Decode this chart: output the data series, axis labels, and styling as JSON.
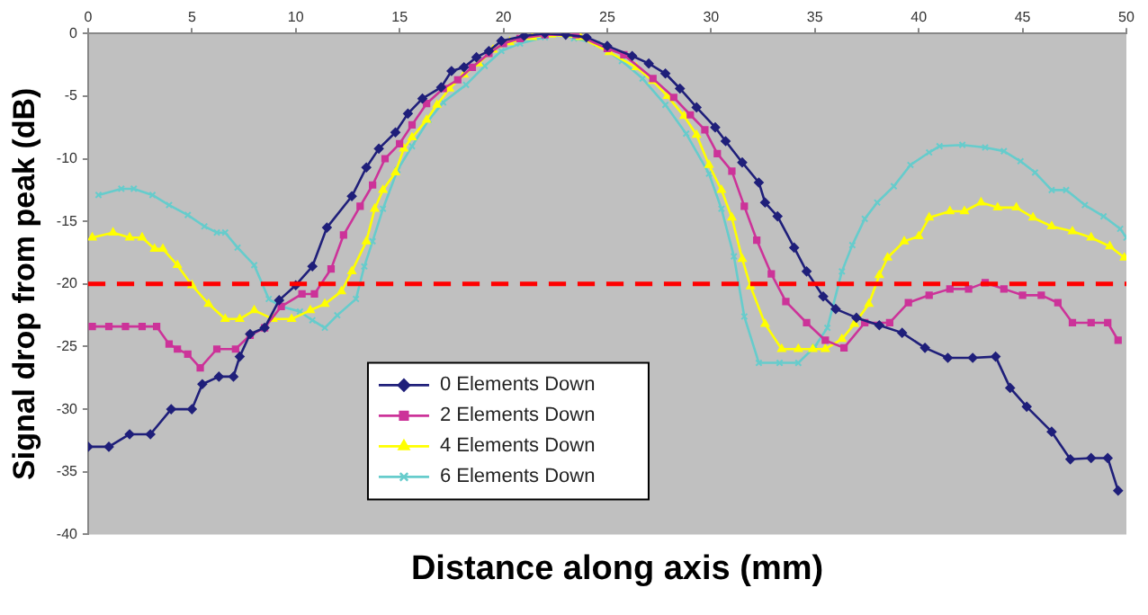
{
  "chart_data": {
    "type": "line",
    "xlabel": "Distance along axis (mm)",
    "ylabel": "Signal drop from peak (dB)",
    "xlim": [
      0,
      50
    ],
    "xticks": [
      0,
      5,
      10,
      15,
      20,
      25,
      30,
      35,
      40,
      45,
      50
    ],
    "ylim": [
      -40,
      0
    ],
    "yticks": [
      0,
      -5,
      -10,
      -15,
      -20,
      -25,
      -30,
      -35,
      -40
    ],
    "grid": false,
    "legend": "bottom",
    "line_style": "solid",
    "ref_lines": [
      {
        "axis": "y",
        "value": -20,
        "color": "#ff0000",
        "line_style": "dashed"
      }
    ],
    "series": [
      {
        "name": "0 Elements Down",
        "color": "#1f1f7a",
        "marker": "diamond",
        "x": [
          0,
          1,
          2,
          3,
          4,
          5,
          5.5,
          6.3,
          7,
          7.3,
          7.8,
          8.5,
          9.2,
          10,
          10.8,
          11.5,
          12.7,
          13.4,
          14,
          14.8,
          15.4,
          16.1,
          17,
          17.5,
          18.1,
          18.7,
          19.3,
          19.9,
          21,
          22,
          23,
          24,
          25,
          26.2,
          27,
          27.8,
          28.5,
          29.3,
          30.2,
          30.7,
          31.5,
          32.3,
          32.6,
          33.2,
          34,
          34.6,
          35.4,
          36,
          37,
          38.1,
          39.2,
          40.3,
          41.4,
          42.6,
          43.7,
          44.4,
          45.2,
          46.4,
          47.3,
          48.3,
          49.1,
          49.6
        ],
        "values": [
          -33,
          -33,
          -32,
          -32,
          -30,
          -30,
          -28,
          -27.4,
          -27.4,
          -25.8,
          -24,
          -23.5,
          -21.3,
          -20.1,
          -18.6,
          -15.5,
          -13,
          -10.7,
          -9.2,
          -7.9,
          -6.4,
          -5.2,
          -4.3,
          -3,
          -2.7,
          -1.9,
          -1.4,
          -0.6,
          -0.2,
          0,
          -0.1,
          -0.3,
          -1,
          -1.8,
          -2.4,
          -3.2,
          -4.4,
          -5.9,
          -7.5,
          -8.6,
          -10.3,
          -11.9,
          -13.5,
          -14.6,
          -17.1,
          -19,
          -21,
          -22,
          -22.7,
          -23.3,
          -23.9,
          -25.1,
          -25.9,
          -25.9,
          -25.8,
          -28.3,
          -29.8,
          -31.8,
          -34,
          -33.9,
          -33.9,
          -36.5
        ]
      },
      {
        "name": "2 Elements Down",
        "color": "#cc3399",
        "marker": "square",
        "x": [
          0.2,
          1,
          1.8,
          2.6,
          3.3,
          3.9,
          4.3,
          4.8,
          5.4,
          6.2,
          7.1,
          7.8,
          8.5,
          9.3,
          10.3,
          10.9,
          11.7,
          12.3,
          13.1,
          13.7,
          14.3,
          15,
          15.6,
          16.3,
          17.1,
          17.8,
          18.5,
          19.3,
          20,
          20.8,
          22,
          23.5,
          25,
          25.8,
          27.2,
          28.2,
          29,
          29.7,
          30.3,
          31,
          31.6,
          32.2,
          32.9,
          33.6,
          34.6,
          35.5,
          36.4,
          37.4,
          38.6,
          39.5,
          40.5,
          41.5,
          42.4,
          43.2,
          44.1,
          45,
          45.9,
          46.7,
          47.4,
          48.3,
          49.1,
          49.6
        ],
        "values": [
          -23.4,
          -23.4,
          -23.4,
          -23.4,
          -23.4,
          -24.8,
          -25.2,
          -25.6,
          -26.7,
          -25.2,
          -25.2,
          -24.1,
          -23.5,
          -21.8,
          -20.8,
          -20.8,
          -18.8,
          -16.1,
          -13.8,
          -12.1,
          -10,
          -8.8,
          -7.3,
          -5.6,
          -4.4,
          -3.7,
          -2.7,
          -1.6,
          -0.8,
          -0.4,
          -0.1,
          -0.1,
          -1.2,
          -1.7,
          -3.6,
          -5.1,
          -6.5,
          -7.7,
          -9.6,
          -11,
          -13.8,
          -16.5,
          -19.2,
          -21.4,
          -23.1,
          -24.5,
          -25.1,
          -23.1,
          -23.1,
          -21.5,
          -20.9,
          -20.4,
          -20.4,
          -19.9,
          -20.4,
          -20.9,
          -20.9,
          -21.5,
          -23.1,
          -23.1,
          -23.1,
          -24.5
        ]
      },
      {
        "name": "4 Elements Down",
        "color": "#ffff00",
        "marker": "triangle",
        "x": [
          0.2,
          1.2,
          2,
          2.6,
          3.2,
          3.6,
          4.3,
          5,
          5.8,
          6.6,
          7.3,
          8,
          8.9,
          9.8,
          10.7,
          11.4,
          12.2,
          12.7,
          13.4,
          13.8,
          14.2,
          14.8,
          15.2,
          15.6,
          16.3,
          16.8,
          17.4,
          18.1,
          18.8,
          19.5,
          20.3,
          21.4,
          22.3,
          23.7,
          25.1,
          26.4,
          27.2,
          27.9,
          28.7,
          29.3,
          29.9,
          30.5,
          31,
          31.5,
          31.9,
          32.6,
          33.4,
          34.2,
          34.9,
          35.5,
          36.3,
          36.9,
          37.6,
          38.1,
          38.5,
          39.3,
          40,
          40.5,
          41.5,
          42.2,
          43,
          43.8,
          44.7,
          45.5,
          46.4,
          47.4,
          48.3,
          49.2,
          49.9
        ],
        "values": [
          -16.3,
          -15.9,
          -16.3,
          -16.3,
          -17.2,
          -17.2,
          -18.5,
          -20.1,
          -21.6,
          -22.8,
          -22.8,
          -22.1,
          -22.8,
          -22.8,
          -22.1,
          -21.6,
          -20.6,
          -19,
          -16.6,
          -14,
          -12.5,
          -11.1,
          -9.2,
          -8.3,
          -6.9,
          -5.7,
          -4.4,
          -3.3,
          -2.4,
          -1.3,
          -0.7,
          -0.3,
          -0.1,
          -0.3,
          -1.5,
          -2.7,
          -3.8,
          -5,
          -6.6,
          -8.1,
          -10.5,
          -12.5,
          -14.7,
          -18,
          -20.2,
          -23.2,
          -25.2,
          -25.2,
          -25.2,
          -25.2,
          -24.4,
          -23.2,
          -21.6,
          -19.3,
          -17.9,
          -16.6,
          -16.2,
          -14.7,
          -14.2,
          -14.2,
          -13.5,
          -13.9,
          -13.9,
          -14.7,
          -15.4,
          -15.8,
          -16.3,
          -17,
          -17.9
        ]
      },
      {
        "name": "6 Elements Down",
        "color": "#66cccc",
        "marker": "cross",
        "x": [
          0.5,
          1.6,
          2.2,
          3.1,
          3.9,
          4.8,
          5.6,
          6.2,
          6.6,
          7.2,
          8,
          8.7,
          9.3,
          10.2,
          10.8,
          11.4,
          12,
          12.9,
          13.3,
          13.7,
          14.2,
          14.9,
          15.6,
          16.4,
          17.1,
          18.2,
          19.1,
          19.9,
          20.8,
          22,
          22.7,
          23.4,
          24.5,
          25.7,
          26.7,
          27.8,
          28.8,
          29.9,
          30.5,
          31.1,
          31.6,
          32.3,
          33.3,
          34.2,
          35,
          35.6,
          36.3,
          36.8,
          37.4,
          38,
          38.8,
          39.6,
          40.5,
          41,
          42.1,
          43.2,
          44.1,
          44.9,
          45.6,
          46.4,
          47.1,
          48,
          48.9,
          49.7,
          50
        ],
        "values": [
          -12.9,
          -12.4,
          -12.4,
          -12.9,
          -13.7,
          -14.5,
          -15.4,
          -15.9,
          -15.9,
          -17.1,
          -18.5,
          -21.2,
          -21.8,
          -22.2,
          -22.9,
          -23.5,
          -22.5,
          -21.2,
          -18.6,
          -16.6,
          -14,
          -10.9,
          -9,
          -6.9,
          -5.5,
          -4.1,
          -2.6,
          -1.4,
          -0.8,
          -0.3,
          0,
          -0.4,
          -0.8,
          -2.2,
          -3.6,
          -5.7,
          -8,
          -11.2,
          -14,
          -17.8,
          -22.6,
          -26.3,
          -26.3,
          -26.3,
          -25,
          -23.5,
          -19,
          -16.9,
          -14.8,
          -13.5,
          -12.2,
          -10.5,
          -9.5,
          -9,
          -8.9,
          -9.1,
          -9.4,
          -10.2,
          -11.1,
          -12.5,
          -12.5,
          -13.7,
          -14.6,
          -15.6,
          -16.3
        ]
      }
    ]
  }
}
